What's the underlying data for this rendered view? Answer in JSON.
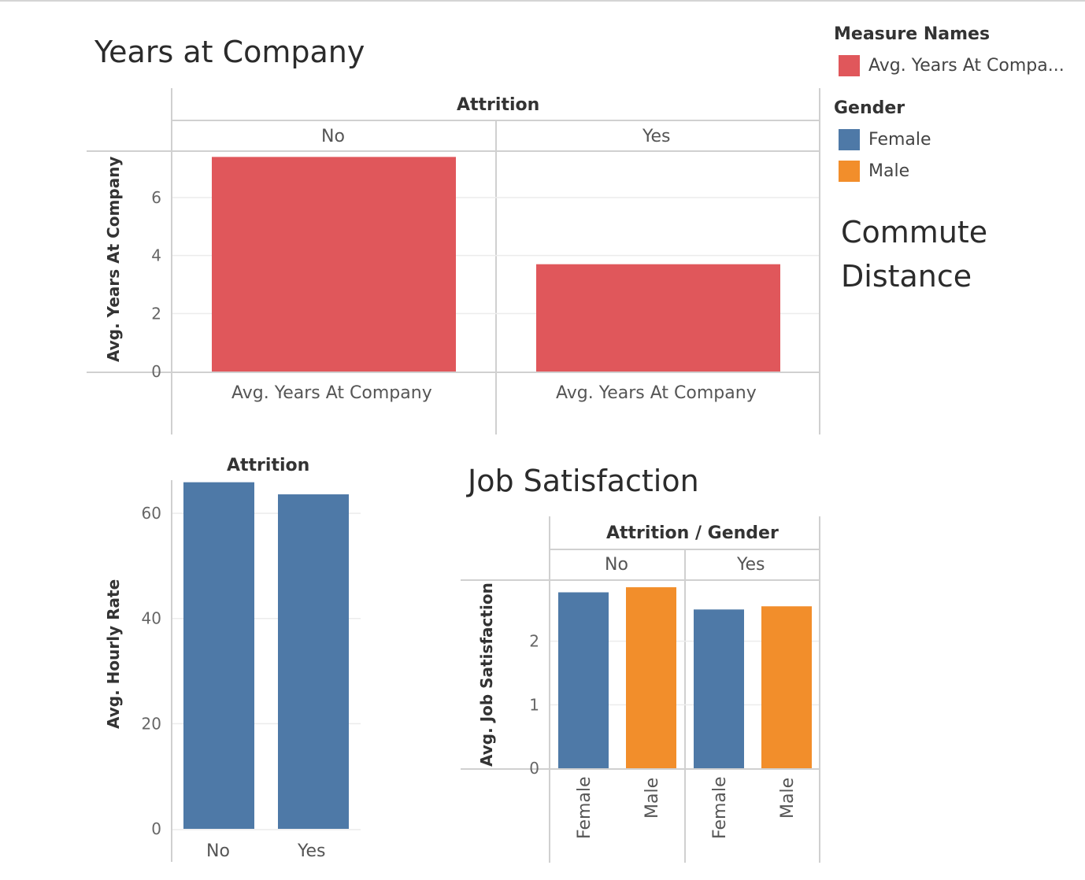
{
  "legend": {
    "measure_names": {
      "title": "Measure Names",
      "items": [
        {
          "label": "Avg. Years At Compa...",
          "color": "#e0575b"
        }
      ]
    },
    "gender": {
      "title": "Gender",
      "items": [
        {
          "label": "Female",
          "color": "#4e79a7"
        },
        {
          "label": "Male",
          "color": "#f28e2b"
        }
      ]
    }
  },
  "commute_distance": {
    "line1": "Commute",
    "line2": "Distance"
  },
  "chart_data": [
    {
      "type": "bar",
      "title": "Years at Company",
      "column_header": "Attrition",
      "categories": [
        "No",
        "Yes"
      ],
      "measure_label": "Avg. Years At Company",
      "ylabel": "Avg. Years At Company",
      "yticks": [
        0,
        2,
        4,
        6
      ],
      "ylim": [
        0,
        7.6
      ],
      "series": [
        {
          "name": "Avg. Years At Company",
          "values": [
            7.4,
            3.7
          ]
        }
      ],
      "color": "#e0575b",
      "grid": true
    },
    {
      "type": "bar",
      "title": "",
      "column_header": "Attrition",
      "categories": [
        "No",
        "Yes"
      ],
      "ylabel": "Avg. Hourly Rate",
      "yticks": [
        0,
        20,
        40,
        60
      ],
      "ylim": [
        0,
        66
      ],
      "series": [
        {
          "values": [
            65.9,
            63.6
          ]
        }
      ],
      "color": "#4e79a7",
      "grid": true
    },
    {
      "type": "bar",
      "title": "Job Satisfaction",
      "column_header": "Attrition / Gender",
      "groups": [
        "No",
        "Yes"
      ],
      "categories": [
        "Female",
        "Male"
      ],
      "ylabel": "Avg. Job Satisfaction",
      "yticks": [
        0,
        1,
        2
      ],
      "ylim": [
        0,
        2.95
      ],
      "series": [
        {
          "name": "Female",
          "values": [
            2.77,
            2.5
          ]
        },
        {
          "name": "Male",
          "values": [
            2.85,
            2.55
          ]
        }
      ],
      "colors": {
        "Female": "#4e79a7",
        "Male": "#f28e2b"
      },
      "grid": true
    }
  ]
}
